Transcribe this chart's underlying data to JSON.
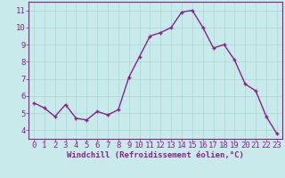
{
  "x": [
    0,
    1,
    2,
    3,
    4,
    5,
    6,
    7,
    8,
    9,
    10,
    11,
    12,
    13,
    14,
    15,
    16,
    17,
    18,
    19,
    20,
    21,
    22,
    23
  ],
  "y": [
    5.6,
    5.3,
    4.8,
    5.5,
    4.7,
    4.6,
    5.1,
    4.9,
    5.2,
    7.1,
    8.3,
    9.5,
    9.7,
    10.0,
    10.9,
    11.0,
    10.0,
    8.8,
    9.0,
    8.1,
    6.7,
    6.3,
    4.8,
    3.8
  ],
  "line_color": "#882288",
  "marker": "+",
  "marker_color": "#882288",
  "xlabel": "Windchill (Refroidissement éolien,°C)",
  "ylabel": "",
  "title": "",
  "xlim": [
    -0.5,
    23.5
  ],
  "ylim": [
    3.5,
    11.5
  ],
  "yticks": [
    4,
    5,
    6,
    7,
    8,
    9,
    10,
    11
  ],
  "xticks": [
    0,
    1,
    2,
    3,
    4,
    5,
    6,
    7,
    8,
    9,
    10,
    11,
    12,
    13,
    14,
    15,
    16,
    17,
    18,
    19,
    20,
    21,
    22,
    23
  ],
  "bg_color": "#c8eaea",
  "grid_color": "#a8d8d8",
  "label_color": "#882288",
  "axis_color": "#882288",
  "tick_color": "#882288",
  "font_size_xlabel": 6.5,
  "font_size_ticks": 6.5,
  "line_width": 1.0,
  "marker_size": 3.5
}
